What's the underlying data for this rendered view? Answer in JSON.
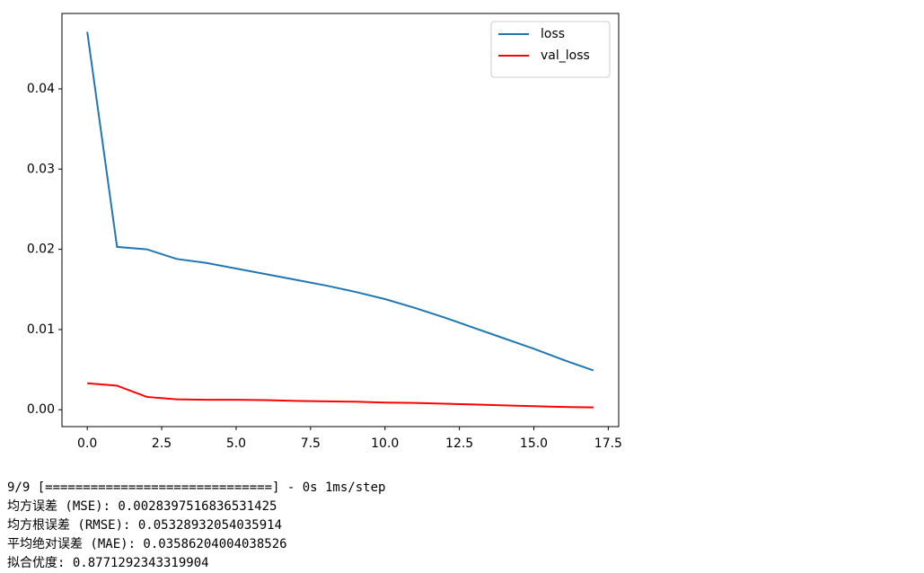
{
  "chart_data": {
    "type": "line",
    "x": [
      0,
      1,
      2,
      3,
      4,
      5,
      6,
      7,
      8,
      9,
      10,
      11,
      12,
      13,
      14,
      15,
      16,
      17
    ],
    "series": [
      {
        "name": "loss",
        "color": "#1f77b4",
        "values": [
          0.0471,
          0.0203,
          0.02,
          0.0188,
          0.0183,
          0.0176,
          0.0169,
          0.0162,
          0.0155,
          0.0147,
          0.0138,
          0.0127,
          0.0115,
          0.0102,
          0.0089,
          0.0076,
          0.0062,
          0.0049
        ]
      },
      {
        "name": "val_loss",
        "color": "#ff0000",
        "values": [
          0.0033,
          0.003,
          0.0016,
          0.0013,
          0.00125,
          0.00125,
          0.0012,
          0.0011,
          0.00105,
          0.001,
          0.0009,
          0.00085,
          0.00075,
          0.00065,
          0.00055,
          0.00045,
          0.00035,
          0.0003
        ]
      }
    ],
    "xlim": [
      -0.85,
      17.85
    ],
    "ylim": [
      -0.0021,
      0.0494
    ],
    "xticks": [
      {
        "value": 0,
        "label": "0.0"
      },
      {
        "value": 2.5,
        "label": "2.5"
      },
      {
        "value": 5,
        "label": "5.0"
      },
      {
        "value": 7.5,
        "label": "7.5"
      },
      {
        "value": 10,
        "label": "10.0"
      },
      {
        "value": 12.5,
        "label": "12.5"
      },
      {
        "value": 15,
        "label": "15.0"
      },
      {
        "value": 17.5,
        "label": "17.5"
      }
    ],
    "yticks": [
      {
        "value": 0,
        "label": "0.00"
      },
      {
        "value": 0.01,
        "label": "0.01"
      },
      {
        "value": 0.02,
        "label": "0.02"
      },
      {
        "value": 0.03,
        "label": "0.03"
      },
      {
        "value": 0.04,
        "label": "0.04"
      }
    ],
    "grid": false,
    "legend": "upper right"
  },
  "output": {
    "lines": [
      "9/9 [==============================] - 0s 1ms/step",
      "均方误差 (MSE): 0.002839751683653142​5",
      "均方根误差 (RMSE): 0.05328932054035914",
      "平均绝对误差 (MAE): 0.03586204004038526",
      "拟合优度: 0.8771292343319904"
    ]
  }
}
